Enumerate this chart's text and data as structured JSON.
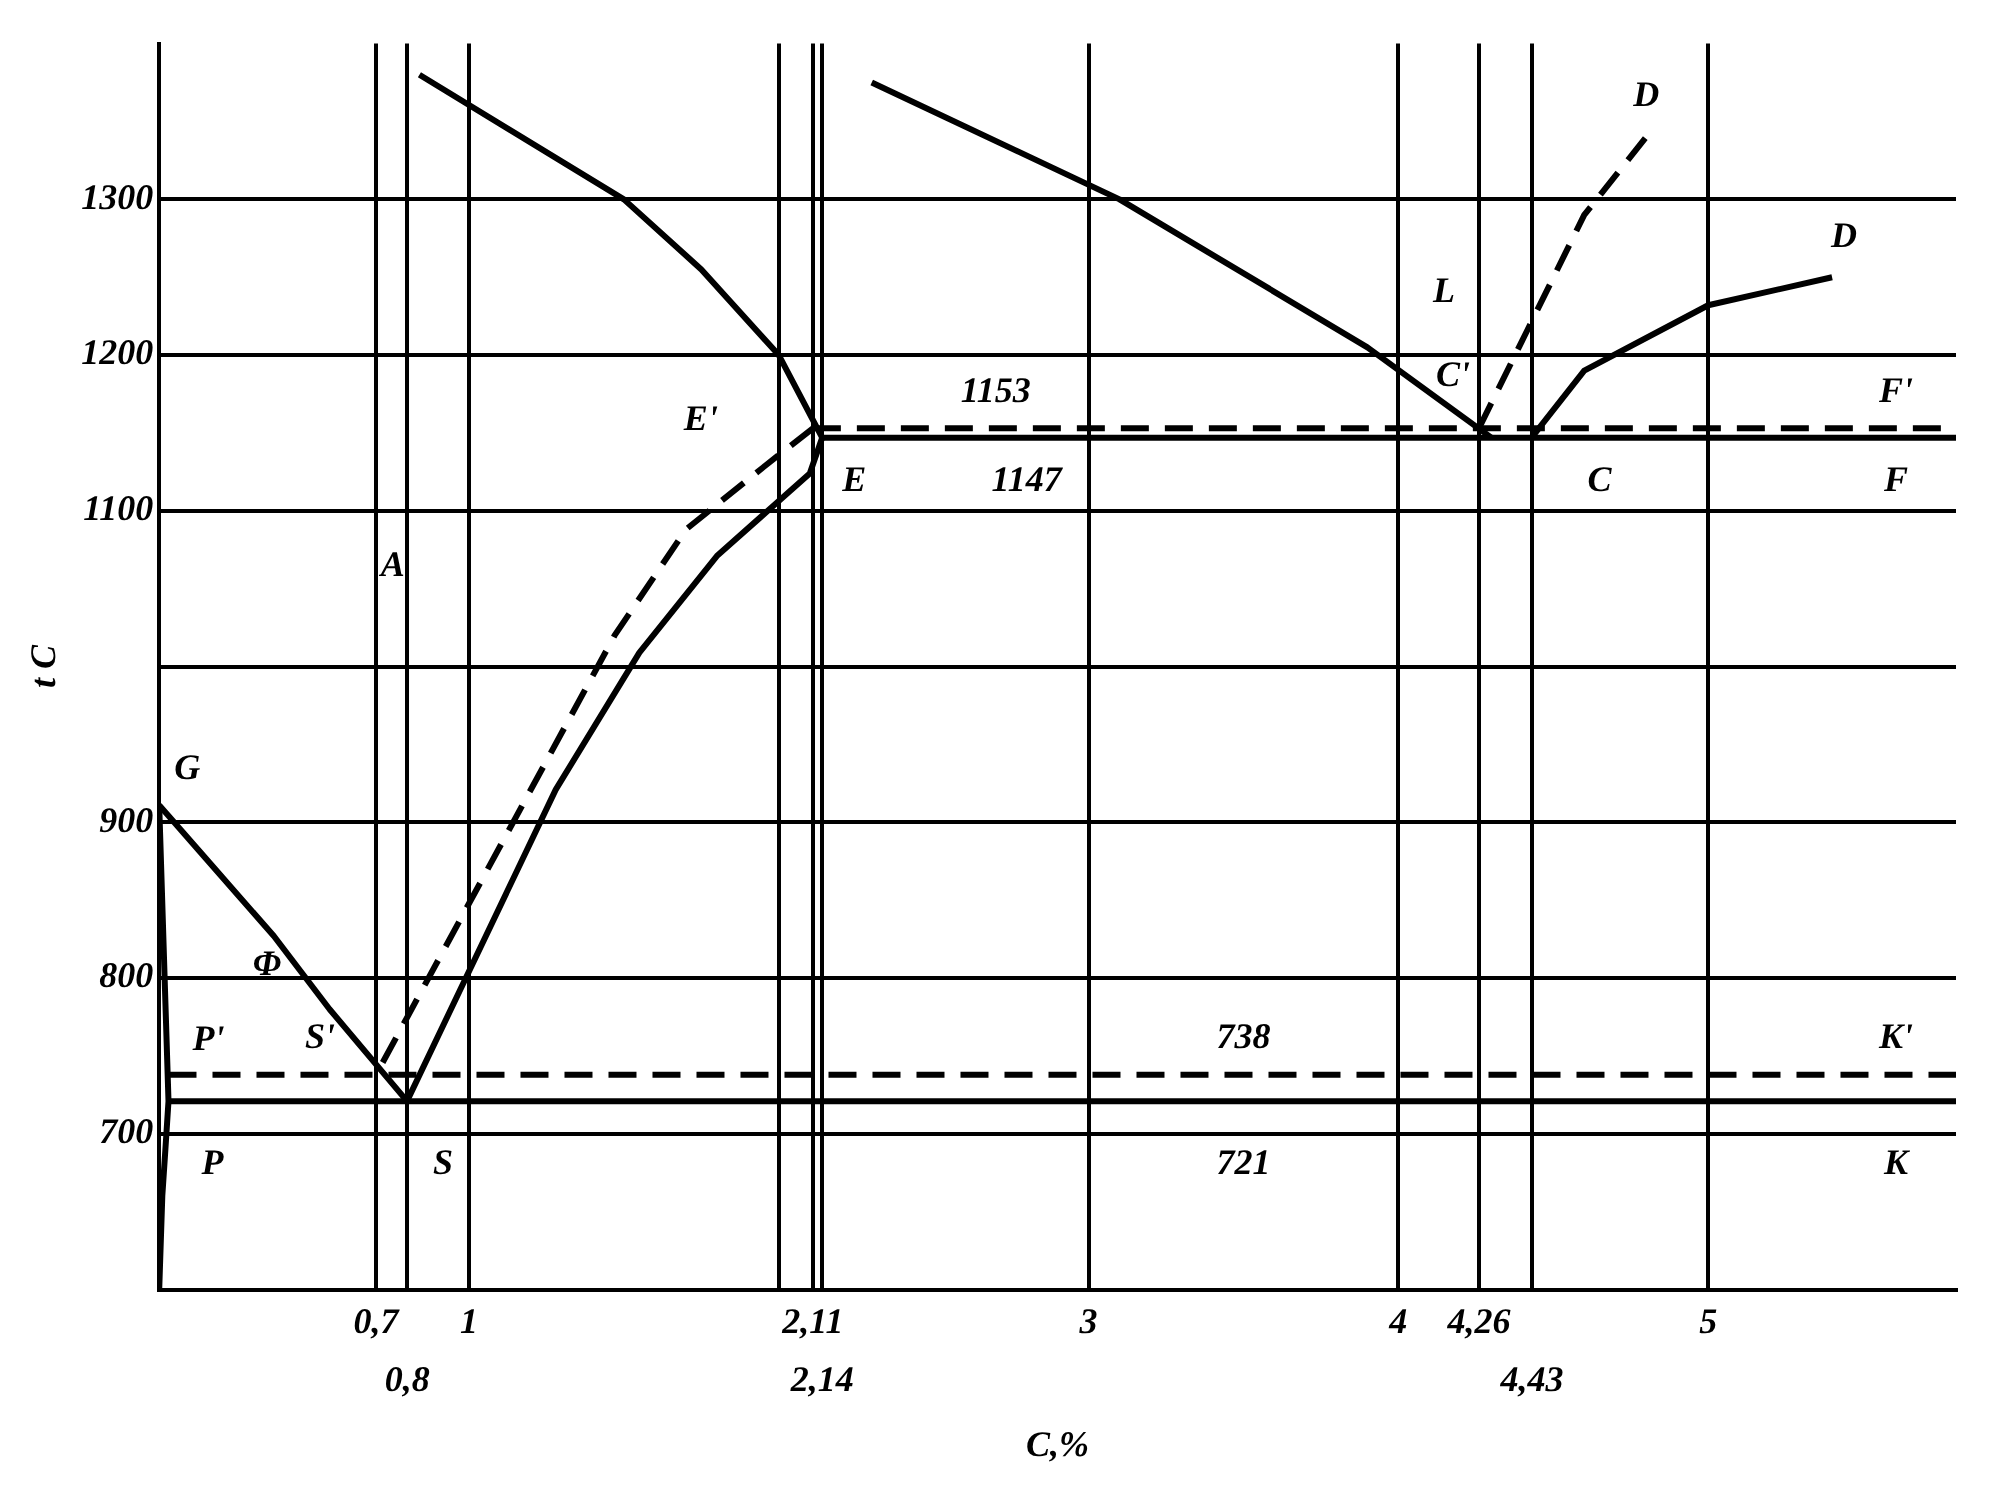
{
  "chart_data": {
    "type": "line",
    "xlabel": "C,%",
    "ylabel": "t C",
    "xlim": [
      0,
      5.8
    ],
    "ylim": [
      600,
      1400
    ],
    "xticks": [
      {
        "value": 0.7,
        "label": "0,7"
      },
      {
        "value": 0.8,
        "label": null
      },
      1,
      {
        "value": 2,
        "label": null
      },
      {
        "value": 2.11,
        "label": "2,11"
      },
      {
        "value": 2.14,
        "label": null
      },
      3,
      4,
      {
        "value": 4.26,
        "label": "4,26"
      },
      {
        "value": 4.43,
        "label": null
      },
      5
    ],
    "yticks": [
      700,
      800,
      900,
      {
        "value": 1000,
        "label": null
      },
      1100,
      1200,
      1300
    ],
    "grid": true,
    "legend": false,
    "marker": "none",
    "series": [
      {
        "color": "#000000",
        "line_style": "solid",
        "x": [
          0.84,
          1.5,
          1.75,
          2,
          2.14
        ],
        "values": [
          1380,
          1300,
          1255,
          1200,
          1147
        ]
      },
      {
        "color": "#000000",
        "line_style": "solid",
        "x": [
          2.3,
          3.1,
          3.9,
          4.3
        ],
        "values": [
          1375,
          1300,
          1205,
          1147
        ]
      },
      {
        "color": "#000000",
        "line_style": "solid",
        "x": [
          4.43,
          4.6,
          5.0,
          5.4
        ],
        "values": [
          1147,
          1190,
          1232,
          1250
        ]
      },
      {
        "color": "#000000",
        "line_style": "solid",
        "x": [
          2.14,
          2.1,
          1.8,
          1.55,
          1.28,
          0.8
        ],
        "values": [
          1147,
          1124,
          1071,
          1009,
          921,
          721
        ]
      },
      {
        "color": "#000000",
        "line_style": "solid",
        "x": [
          0,
          0.15,
          0.37,
          0.55,
          0.8
        ],
        "values": [
          911,
          877,
          827,
          780,
          721
        ]
      },
      {
        "color": "#000000",
        "line_style": "solid",
        "x": [
          0,
          0.03,
          0.02,
          0.01,
          0
        ],
        "values": [
          911,
          721,
          690,
          660,
          600
        ]
      },
      {
        "color": "#000000",
        "line_style": "solid",
        "x": [
          0.03,
          5.8
        ],
        "values": [
          721,
          721
        ]
      },
      {
        "color": "#000000",
        "line_style": "solid",
        "x": [
          2.14,
          5.8
        ],
        "values": [
          1147,
          1147
        ]
      },
      {
        "color": "#000000",
        "line_style": "dashed",
        "x": [
          2.11,
          1.95,
          1.7,
          1.47,
          0.7
        ],
        "values": [
          1153,
          1128,
          1088,
          1020,
          738
        ]
      },
      {
        "color": "#000000",
        "line_style": "dashed",
        "x": [
          4.26,
          4.6,
          4.8
        ],
        "values": [
          1153,
          1290,
          1340
        ]
      },
      {
        "color": "#000000",
        "line_style": "dashed",
        "x": [
          2.11,
          5.8
        ],
        "values": [
          1153,
          1153
        ]
      },
      {
        "color": "#000000",
        "line_style": "dashed",
        "x": [
          0.03,
          5.8
        ],
        "values": [
          738,
          738
        ]
      }
    ],
    "annotations": [
      "A",
      "L",
      "Φ",
      {
        "text": "G",
        "x": 0,
        "y": 911
      },
      {
        "text": "P'",
        "x": 0.03,
        "y": 738
      },
      {
        "text": "P",
        "x": 0.03,
        "y": 721
      },
      {
        "text": "S'",
        "x": 0.7,
        "y": 738
      },
      {
        "text": "S",
        "x": 0.8,
        "y": 721
      },
      {
        "text": "E'",
        "x": 2.11,
        "y": 1153
      },
      {
        "text": "E",
        "x": 2.14,
        "y": 1147
      },
      {
        "text": "1153",
        "x": 2.7,
        "y": 1153
      },
      {
        "text": "1147",
        "x": 2.8,
        "y": 1147
      },
      {
        "text": "C'",
        "x": 4.26,
        "y": 1153
      },
      {
        "text": "C",
        "x": 4.43,
        "y": 1147
      },
      {
        "text": "F'",
        "x": 5.8,
        "y": 1153
      },
      {
        "text": "F",
        "x": 5.8,
        "y": 1147
      },
      {
        "text": "D",
        "x": 4.8,
        "y": 1340
      },
      {
        "text": "D",
        "x": 5.4,
        "y": 1250
      },
      {
        "text": "738",
        "x": 3.5,
        "y": 738
      },
      {
        "text": "721",
        "x": 3.5,
        "y": 721
      },
      {
        "text": "K'",
        "x": 5.8,
        "y": 738
      },
      {
        "text": "K",
        "x": 5.8,
        "y": 721
      },
      "0,8",
      "2,14",
      "4,43"
    ]
  }
}
